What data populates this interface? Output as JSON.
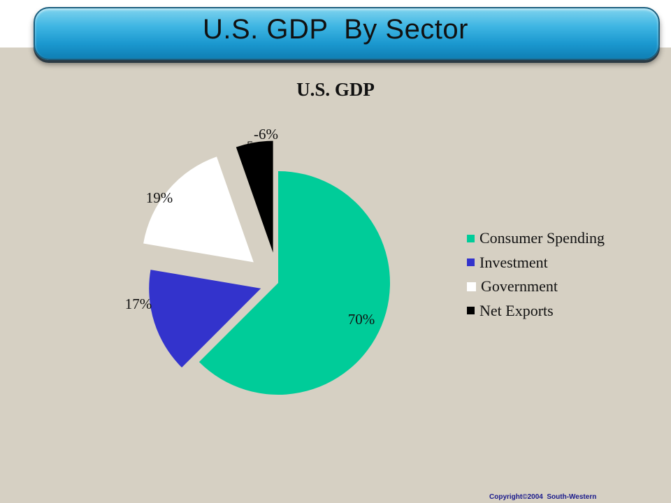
{
  "slide": {
    "title": "U.S. GDP  By Sector",
    "copyright": "Copyright©2004  South-Western"
  },
  "chart_data": {
    "type": "pie",
    "title": "U.S. GDP",
    "legend_position": "right",
    "slices": [
      {
        "name": "Consumer Spending",
        "value": 70,
        "label": "70%",
        "color": "#00cc99"
      },
      {
        "name": "Investment",
        "value": 17,
        "label": "17%",
        "color": "#3333cc"
      },
      {
        "name": "Government",
        "value": 19,
        "label": "19%",
        "color": "#ffffff"
      },
      {
        "name": "Net Exports",
        "value": -6,
        "label": "-6%",
        "color": "#000000"
      }
    ]
  }
}
